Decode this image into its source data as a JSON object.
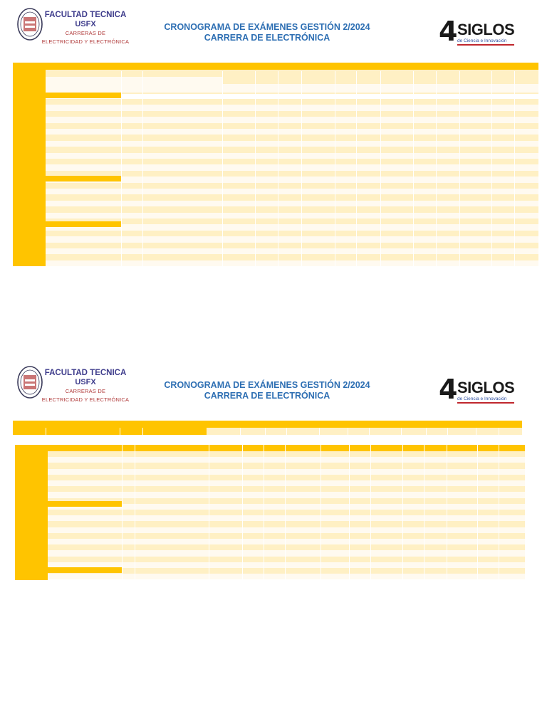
{
  "header": {
    "faculty": "FACULTAD TECNICA",
    "university": "USFX",
    "dept_line1": "CARRERAS DE",
    "dept_line2": "ELECTRICIDAD Y ELECTRÓNICA",
    "title": "CRONOGRAMA DE EXÁMENES GESTIÓN 2/2024",
    "subtitle": "CARRERA DE  ELECTRÓNICA",
    "logo_number": "4",
    "logo_word": "SIGLOS",
    "logo_tag": "de Ciencia e Innovación"
  },
  "colors": {
    "accent": "#ffc400",
    "row_a": "#fff0c4",
    "row_b": "#fffaf0",
    "title_blue": "#2e6fb3",
    "faculty_purple": "#3f3d8c",
    "dept_red": "#b03a3a"
  },
  "tables": [
    {
      "name": "table-1",
      "columns": 21,
      "rows": 28,
      "section_breaks": [
        3,
        15,
        21
      ]
    },
    {
      "name": "table-2",
      "columns": 19,
      "rows": 22,
      "section_breaks": [
        8,
        19
      ]
    }
  ]
}
